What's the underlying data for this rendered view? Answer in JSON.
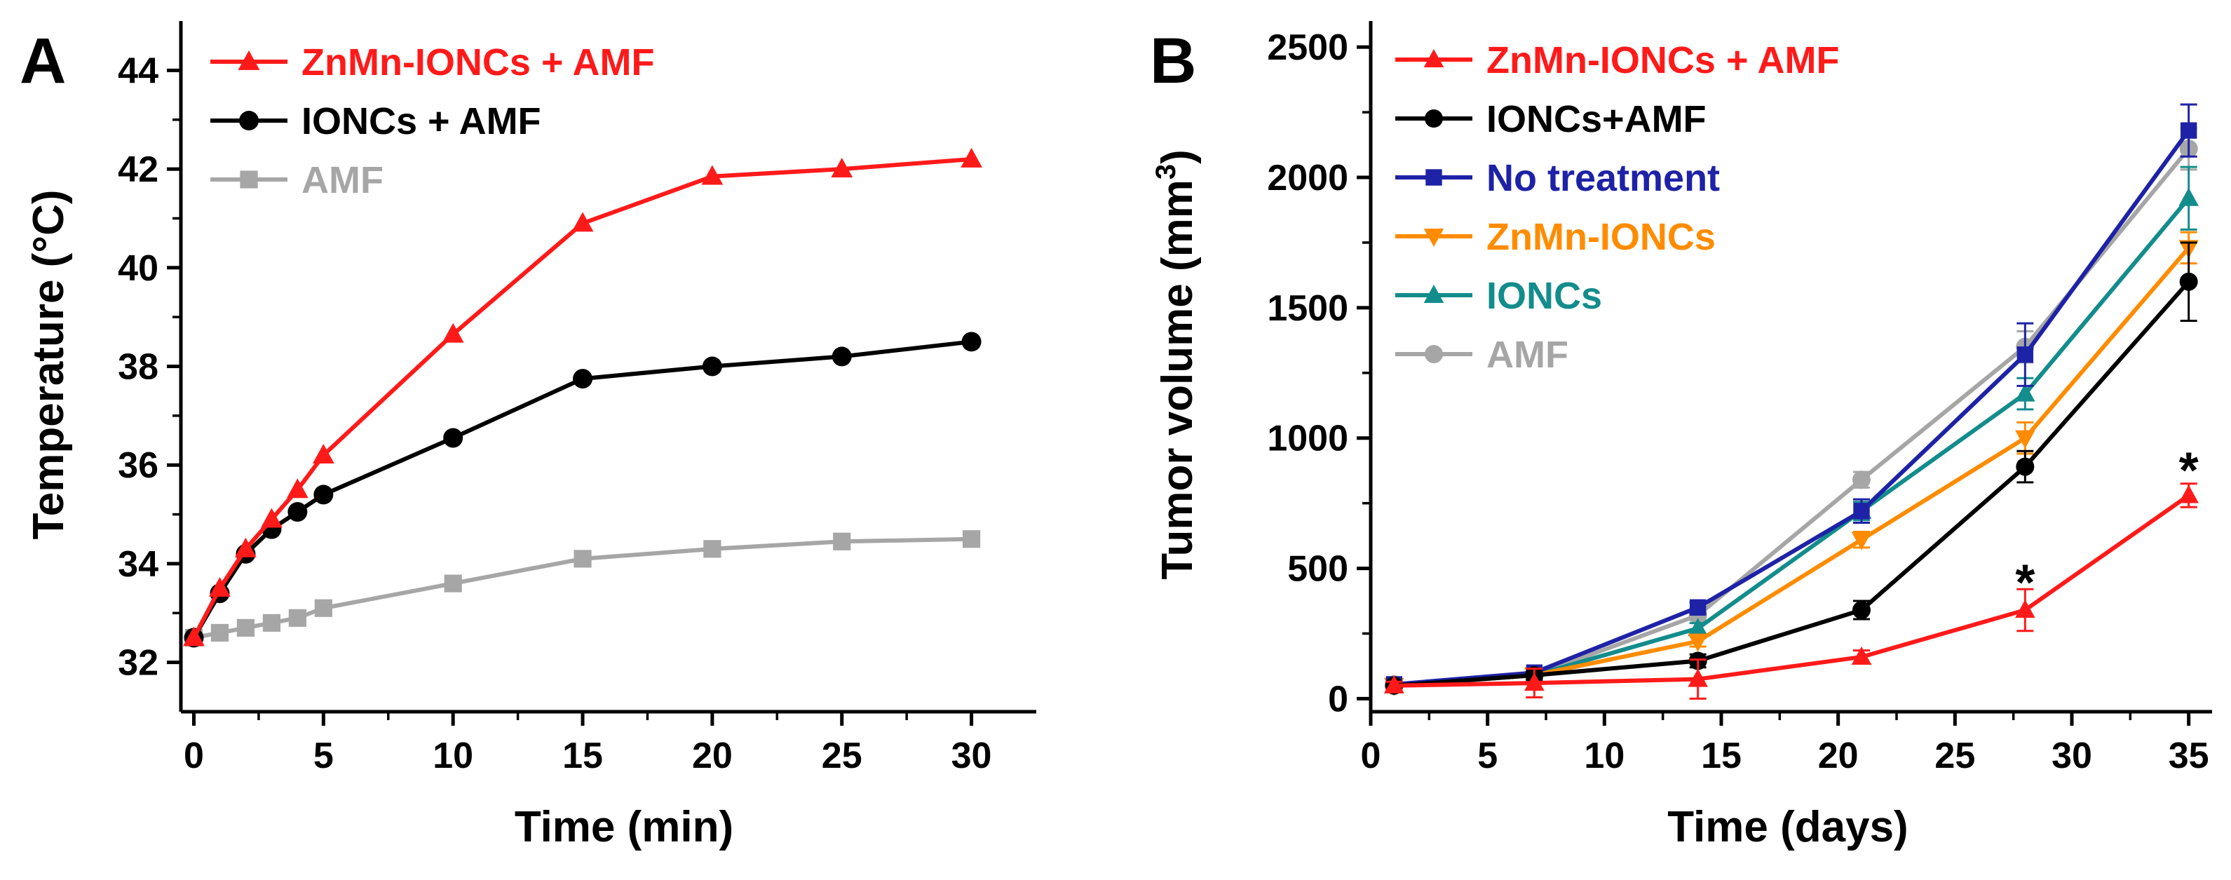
{
  "colors": {
    "red": "#ff1a1a",
    "black": "#000000",
    "gray": "#a6a6a6",
    "blue": "#1e22a6",
    "orange": "#ff8c00",
    "teal": "#138c8c"
  },
  "chart_data": [
    {
      "panel": "A",
      "type": "line",
      "xlabel": "Time (min)",
      "ylabel": "Temperature (°C)",
      "xlim": [
        -0.5,
        32.5
      ],
      "ylim": [
        31,
        45
      ],
      "xticks": [
        0,
        5,
        10,
        15,
        20,
        25,
        30
      ],
      "yticks": [
        32,
        34,
        36,
        38,
        40,
        42,
        44
      ],
      "legend_position": "top-left",
      "series": [
        {
          "name": "ZnMn-IONCs + AMF",
          "color": "red",
          "marker": "triangle-up",
          "x": [
            0,
            1,
            2,
            3,
            4,
            5,
            10,
            15,
            20,
            25,
            30
          ],
          "y": [
            32.5,
            33.5,
            34.3,
            34.9,
            35.5,
            36.2,
            38.65,
            40.9,
            41.85,
            42.0,
            42.2
          ]
        },
        {
          "name": "IONCs + AMF",
          "color": "black",
          "marker": "circle",
          "x": [
            0,
            1,
            2,
            3,
            4,
            5,
            10,
            15,
            20,
            25,
            30
          ],
          "y": [
            32.5,
            33.4,
            34.2,
            34.7,
            35.05,
            35.4,
            36.55,
            37.75,
            38.0,
            38.2,
            38.5
          ]
        },
        {
          "name": "AMF",
          "color": "gray",
          "marker": "square",
          "x": [
            0,
            1,
            2,
            3,
            4,
            5,
            10,
            15,
            20,
            25,
            30
          ],
          "y": [
            32.5,
            32.6,
            32.7,
            32.8,
            32.9,
            33.1,
            33.6,
            34.1,
            34.3,
            34.45,
            34.5
          ]
        }
      ]
    },
    {
      "panel": "B",
      "type": "line",
      "xlabel": "Time (days)",
      "ylabel": "Tumor volume (mm",
      "ylabel_superscript": "3",
      "ylabel_suffix": ")",
      "xlim": [
        0,
        36
      ],
      "ylim": [
        -50,
        2600
      ],
      "xticks": [
        0,
        5,
        10,
        15,
        20,
        25,
        30,
        35
      ],
      "yticks": [
        0,
        500,
        1000,
        1500,
        2000,
        2500
      ],
      "legend_position": "top-left",
      "annotations": [
        {
          "text": "*",
          "x": 28,
          "y": 460
        },
        {
          "text": "*",
          "x": 35,
          "y": 890
        }
      ],
      "series": [
        {
          "name": "ZnMn-IONCs + AMF",
          "color": "red",
          "marker": "triangle-up",
          "x": [
            1,
            7,
            14,
            21,
            28,
            35
          ],
          "y": [
            50,
            60,
            75,
            160,
            340,
            780
          ],
          "err": [
            15,
            55,
            75,
            25,
            80,
            45
          ]
        },
        {
          "name": "IONCs+AMF",
          "color": "black",
          "marker": "circle",
          "x": [
            1,
            7,
            14,
            21,
            28,
            35
          ],
          "y": [
            50,
            90,
            145,
            340,
            890,
            1600
          ],
          "err": [
            10,
            15,
            25,
            35,
            60,
            150
          ]
        },
        {
          "name": "No treatment",
          "color": "blue",
          "marker": "square",
          "x": [
            1,
            7,
            14,
            21,
            28,
            35
          ],
          "y": [
            55,
            100,
            350,
            720,
            1320,
            2180
          ],
          "err": [
            10,
            15,
            20,
            45,
            120,
            100
          ]
        },
        {
          "name": "ZnMn-IONCs",
          "color": "orange",
          "marker": "triangle-down",
          "x": [
            1,
            7,
            14,
            21,
            28,
            35
          ],
          "y": [
            50,
            90,
            220,
            610,
            1000,
            1730
          ],
          "err": [
            10,
            15,
            20,
            30,
            60,
            60
          ]
        },
        {
          "name": "IONCs",
          "color": "teal",
          "marker": "triangle-up",
          "x": [
            1,
            7,
            14,
            21,
            28,
            35
          ],
          "y": [
            50,
            90,
            270,
            720,
            1170,
            1920
          ],
          "err": [
            10,
            15,
            20,
            35,
            60,
            120
          ]
        },
        {
          "name": "AMF",
          "color": "gray",
          "marker": "circle",
          "x": [
            1,
            7,
            14,
            21,
            28,
            35
          ],
          "y": [
            55,
            90,
            320,
            840,
            1350,
            2110
          ],
          "err": [
            10,
            15,
            20,
            30,
            60,
            80
          ]
        }
      ]
    }
  ]
}
